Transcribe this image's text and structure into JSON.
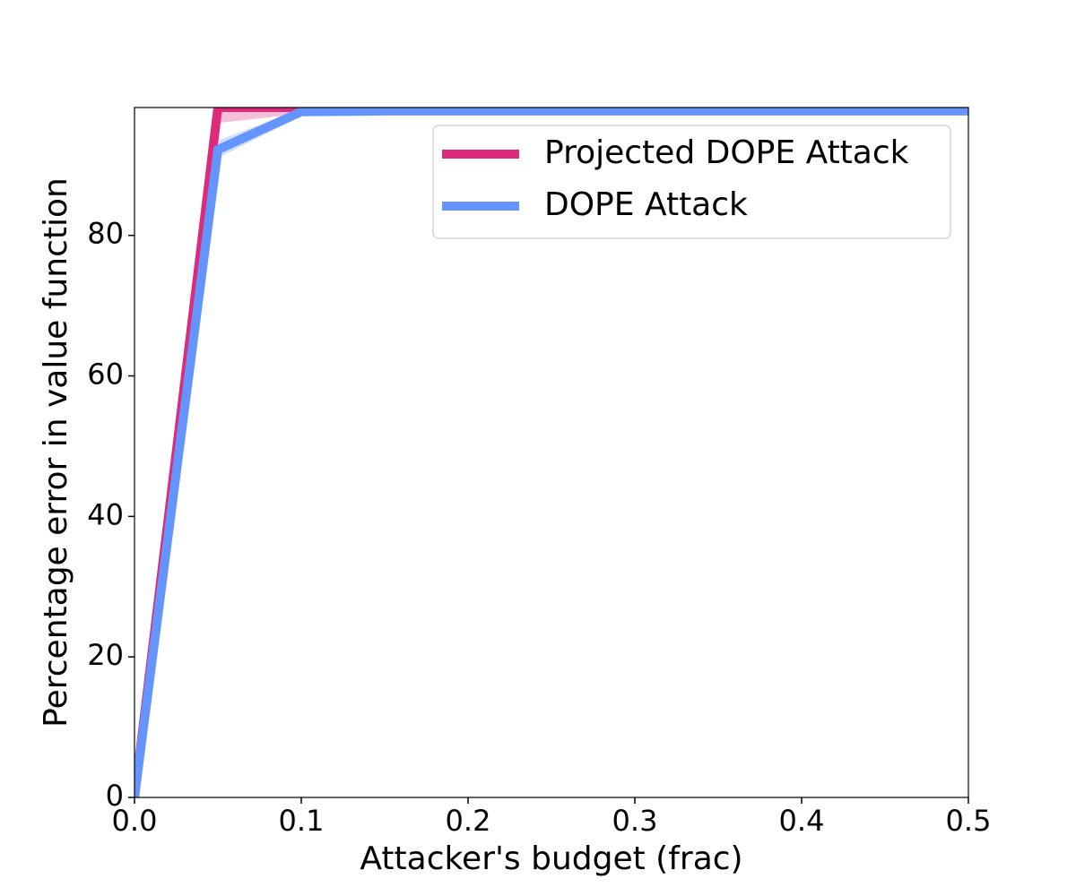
{
  "chart_data": {
    "type": "line",
    "xlabel": "Attacker's budget (frac)",
    "ylabel": "Percentage error in value function",
    "x": [
      0,
      0.05,
      0.1,
      0.15,
      0.2,
      0.25,
      0.3,
      0.35,
      0.4,
      0.45,
      0.5
    ],
    "series": [
      {
        "name": "Projected DOPE Attack",
        "color": "#dd2a7b",
        "values": [
          0,
          98.2,
          98.2,
          98.2,
          98.2,
          98.2,
          98.2,
          98.2,
          98.2,
          98.2,
          98.2
        ],
        "lower": [
          0,
          96,
          97.3,
          97.5,
          97.5,
          97.5,
          97.5,
          97.5,
          97.5,
          97.5,
          97.5
        ],
        "upper": [
          0,
          98.2,
          98.2,
          98.2,
          98.2,
          98.2,
          98.2,
          98.2,
          98.2,
          98.2,
          98.2
        ]
      },
      {
        "name": "DOPE Attack",
        "color": "#6495ff",
        "values": [
          0,
          92.2,
          97.6,
          97.7,
          97.7,
          97.7,
          97.7,
          97.7,
          97.7,
          97.7,
          97.7
        ],
        "lower": [
          0,
          91,
          97,
          97.3,
          97.3,
          97.3,
          97.3,
          97.3,
          97.3,
          97.3,
          97.3
        ],
        "upper": [
          0,
          93.5,
          98,
          98,
          98,
          98,
          98,
          98,
          98,
          98,
          98
        ]
      }
    ],
    "xlim": [
      0,
      0.5
    ],
    "xticks": [
      {
        "value": 0,
        "label": "0.0"
      },
      0.1,
      0.2,
      0.3,
      0.4,
      0.5
    ],
    "ylim": [
      0,
      98.2
    ],
    "yticks": [
      0,
      20,
      40,
      60,
      80
    ],
    "legend": "upper right"
  }
}
